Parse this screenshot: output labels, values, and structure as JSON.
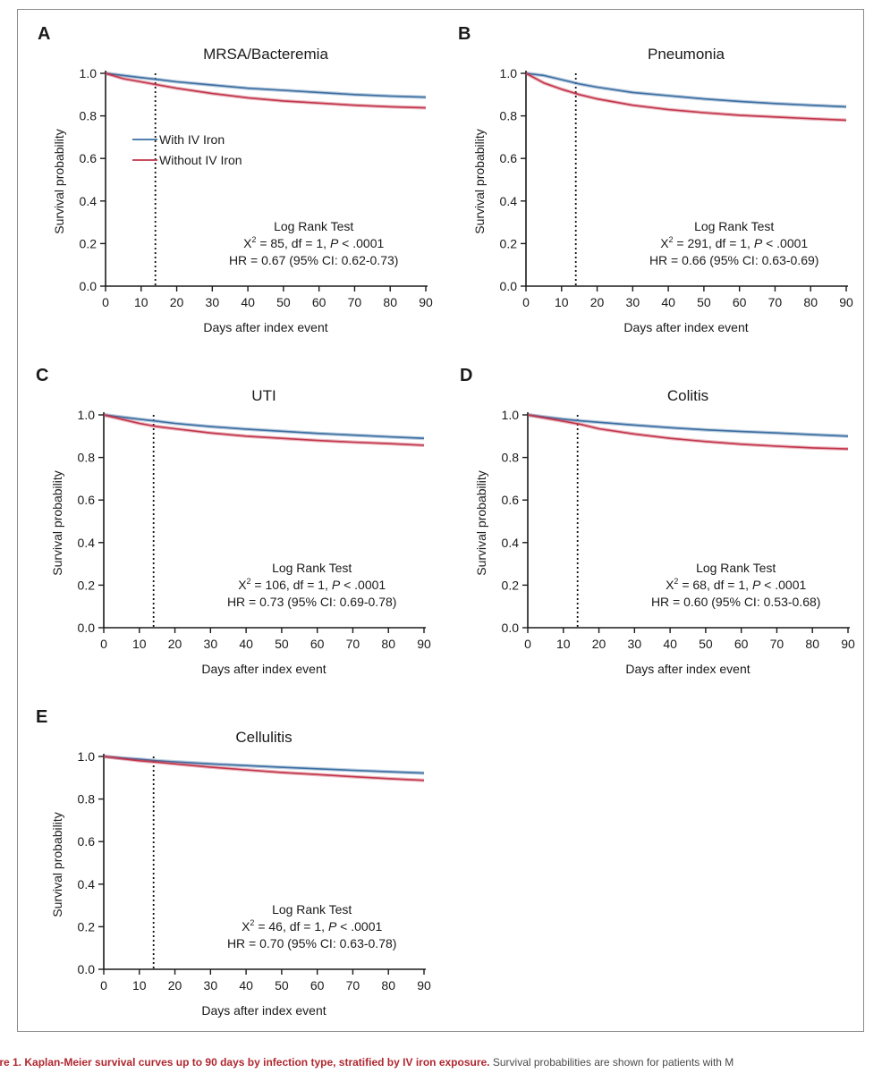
{
  "caption": {
    "bold": "ure 1. Kaplan-Meier survival curves up to 90 days by infection type, stratified by IV iron exposure.",
    "rest": " Survival probabilities are shown for patients with M"
  },
  "colors": {
    "with_iron": "#3a6da1",
    "without_iron": "#c2344a",
    "axis": "#1a1a1a"
  },
  "chart_data": [
    {
      "panel": "A",
      "type": "line",
      "title": "MRSA/Bacteremia",
      "xlabel": "Days after index event",
      "ylabel": "Survival probability",
      "xlim": [
        0,
        90
      ],
      "ylim": [
        0,
        1.0
      ],
      "xticks": [
        "0",
        "10",
        "20",
        "30",
        "40",
        "50",
        "60",
        "70",
        "80",
        "90"
      ],
      "yticks": [
        "0.0",
        "0.2",
        "0.4",
        "0.6",
        "0.8",
        "1.0"
      ],
      "vline": 14,
      "legend": {
        "placement": "left",
        "entries": [
          "With IV Iron",
          "Without IV Iron"
        ]
      },
      "stats": {
        "title": "Log Rank Test",
        "chi_pre": "X",
        "chi_sup": "2",
        "chi_mid": " = 85, df = 1, ",
        "p_label": "P",
        "p_rest": " < .0001",
        "hr": "HR = 0.67 (95% CI: 0.62-0.73)"
      },
      "x": [
        0,
        5,
        10,
        15,
        20,
        30,
        40,
        50,
        60,
        70,
        80,
        90
      ],
      "series": [
        {
          "name": "With IV Iron",
          "values": [
            1.0,
            0.99,
            0.98,
            0.97,
            0.96,
            0.945,
            0.93,
            0.92,
            0.91,
            0.9,
            0.893,
            0.888
          ]
        },
        {
          "name": "Without IV Iron",
          "values": [
            1.0,
            0.975,
            0.96,
            0.945,
            0.93,
            0.905,
            0.885,
            0.87,
            0.86,
            0.85,
            0.843,
            0.838
          ]
        }
      ]
    },
    {
      "panel": "B",
      "type": "line",
      "title": "Pneumonia",
      "xlabel": "Days after index event",
      "ylabel": "Survival probability",
      "xlim": [
        0,
        90
      ],
      "ylim": [
        0,
        1.0
      ],
      "xticks": [
        "0",
        "10",
        "20",
        "30",
        "40",
        "50",
        "60",
        "70",
        "80",
        "90"
      ],
      "yticks": [
        "0.0",
        "0.2",
        "0.4",
        "0.6",
        "0.8",
        "1.0"
      ],
      "vline": 14,
      "stats": {
        "title": "Log Rank Test",
        "chi_pre": "X",
        "chi_sup": "2",
        "chi_mid": " = 291, df = 1, ",
        "p_label": "P",
        "p_rest": " < .0001",
        "hr": "HR = 0.66 (95% CI: 0.63-0.69)"
      },
      "x": [
        0,
        5,
        10,
        15,
        20,
        30,
        40,
        50,
        60,
        70,
        80,
        90
      ],
      "series": [
        {
          "name": "With IV Iron",
          "values": [
            1.0,
            0.99,
            0.97,
            0.95,
            0.935,
            0.91,
            0.895,
            0.88,
            0.868,
            0.858,
            0.85,
            0.843
          ]
        },
        {
          "name": "Without IV Iron",
          "values": [
            1.0,
            0.955,
            0.925,
            0.9,
            0.88,
            0.85,
            0.83,
            0.815,
            0.803,
            0.795,
            0.787,
            0.78
          ]
        }
      ]
    },
    {
      "panel": "C",
      "type": "line",
      "title": "UTI",
      "xlabel": "Days after index event",
      "ylabel": "Survival probability",
      "xlim": [
        0,
        90
      ],
      "ylim": [
        0,
        1.0
      ],
      "xticks": [
        "0",
        "10",
        "20",
        "30",
        "40",
        "50",
        "60",
        "70",
        "80",
        "90"
      ],
      "yticks": [
        "0.0",
        "0.2",
        "0.4",
        "0.6",
        "0.8",
        "1.0"
      ],
      "vline": 14,
      "stats": {
        "title": "Log Rank Test",
        "chi_pre": "X",
        "chi_sup": "2",
        "chi_mid": " = 106, df = 1, ",
        "p_label": "P",
        "p_rest": " < .0001",
        "hr": "HR = 0.73 (95% CI: 0.69-0.78)"
      },
      "x": [
        0,
        5,
        10,
        15,
        20,
        30,
        40,
        50,
        60,
        70,
        80,
        90
      ],
      "series": [
        {
          "name": "With IV Iron",
          "values": [
            1.0,
            0.99,
            0.98,
            0.97,
            0.96,
            0.945,
            0.933,
            0.923,
            0.913,
            0.905,
            0.897,
            0.89
          ]
        },
        {
          "name": "Without IV Iron",
          "values": [
            1.0,
            0.98,
            0.96,
            0.945,
            0.935,
            0.915,
            0.9,
            0.89,
            0.88,
            0.872,
            0.865,
            0.857
          ]
        }
      ]
    },
    {
      "panel": "D",
      "type": "line",
      "title": "Colitis",
      "xlabel": "Days after index event",
      "ylabel": "Survival probability",
      "xlim": [
        0,
        90
      ],
      "ylim": [
        0,
        1.0
      ],
      "xticks": [
        "0",
        "10",
        "20",
        "30",
        "40",
        "50",
        "60",
        "70",
        "80",
        "90"
      ],
      "yticks": [
        "0.0",
        "0.2",
        "0.4",
        "0.6",
        "0.8",
        "1.0"
      ],
      "vline": 14,
      "stats": {
        "title": "Log Rank Test",
        "chi_pre": "X",
        "chi_sup": "2",
        "chi_mid": " = 68, df = 1, ",
        "p_label": "P",
        "p_rest": " < .0001",
        "hr": "HR = 0.60 (95% CI: 0.53-0.68)"
      },
      "x": [
        0,
        5,
        10,
        15,
        20,
        30,
        40,
        50,
        60,
        70,
        80,
        90
      ],
      "series": [
        {
          "name": "With IV Iron",
          "values": [
            1.0,
            0.99,
            0.98,
            0.972,
            0.965,
            0.952,
            0.94,
            0.93,
            0.922,
            0.915,
            0.907,
            0.9
          ]
        },
        {
          "name": "Without IV Iron",
          "values": [
            1.0,
            0.985,
            0.97,
            0.955,
            0.935,
            0.91,
            0.89,
            0.875,
            0.862,
            0.853,
            0.845,
            0.84
          ]
        }
      ]
    },
    {
      "panel": "E",
      "type": "line",
      "title": "Cellulitis",
      "xlabel": "Days after index event",
      "ylabel": "Survival probability",
      "xlim": [
        0,
        90
      ],
      "ylim": [
        0,
        1.0
      ],
      "xticks": [
        "0",
        "10",
        "20",
        "30",
        "40",
        "50",
        "60",
        "70",
        "80",
        "90"
      ],
      "yticks": [
        "0.0",
        "0.2",
        "0.4",
        "0.6",
        "0.8",
        "1.0"
      ],
      "vline": 14,
      "stats": {
        "title": "Log Rank Test",
        "chi_pre": "X",
        "chi_sup": "2",
        "chi_mid": " = 46, df = 1, ",
        "p_label": "P",
        "p_rest": " < .0001",
        "hr": "HR = 0.70 (95% CI: 0.63-0.78)"
      },
      "x": [
        0,
        5,
        10,
        15,
        20,
        30,
        40,
        50,
        60,
        70,
        80,
        90
      ],
      "series": [
        {
          "name": "With IV Iron",
          "values": [
            1.0,
            0.993,
            0.987,
            0.98,
            0.975,
            0.965,
            0.957,
            0.949,
            0.942,
            0.935,
            0.928,
            0.922
          ]
        },
        {
          "name": "Without IV Iron",
          "values": [
            1.0,
            0.99,
            0.98,
            0.973,
            0.965,
            0.95,
            0.937,
            0.925,
            0.915,
            0.905,
            0.896,
            0.888
          ]
        }
      ]
    }
  ]
}
